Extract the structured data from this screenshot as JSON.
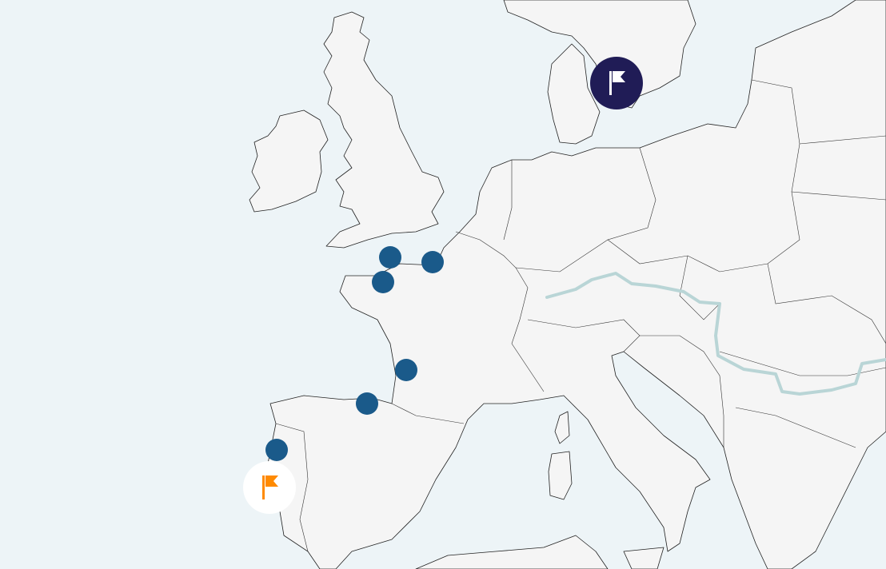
{
  "map": {
    "water_color": "#edf4f7",
    "land_color": "#f5f5f5",
    "border_color": "#333333",
    "river_color": "#b9d5d6"
  },
  "markers": [
    {
      "type": "location",
      "color": "#1a5a8a"
    },
    {
      "type": "location",
      "color": "#1a5a8a"
    },
    {
      "type": "location",
      "color": "#1a5a8a"
    },
    {
      "type": "location",
      "color": "#1a5a8a"
    },
    {
      "type": "location",
      "color": "#1a5a8a"
    },
    {
      "type": "location",
      "color": "#1a5a8a"
    },
    {
      "type": "flag",
      "icon": "flag-icon",
      "color": "#201c56",
      "icon_color": "#ffffff"
    },
    {
      "type": "flag",
      "icon": "flag-icon",
      "color": "#ffffff",
      "icon_color": "#ff8a00"
    }
  ]
}
